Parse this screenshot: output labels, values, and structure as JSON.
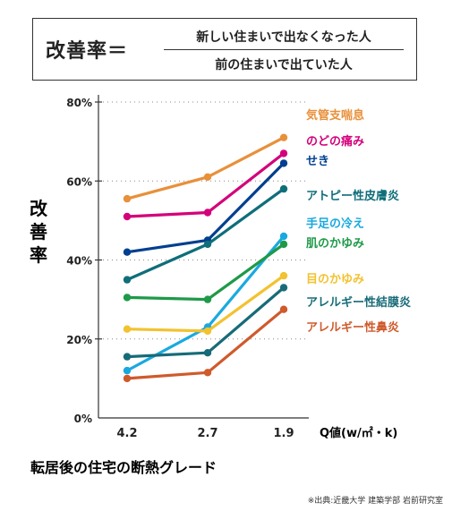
{
  "formula": {
    "lhs": "改善率＝",
    "numerator": "新しい住まいで出なくなった人",
    "denominator": "前の住まいで出ていた人"
  },
  "chart_data": {
    "type": "line",
    "title": "",
    "ylabel": "改善率",
    "xlabel": "転居後の住宅の断熱グレード",
    "x_unit_label": "Q値(w/㎡・k)",
    "categories": [
      "4.2",
      "2.7",
      "1.9"
    ],
    "ylim": [
      0,
      80
    ],
    "yticks": [
      0,
      20,
      40,
      60,
      80
    ],
    "ytick_labels": [
      "0%",
      "20%",
      "40%",
      "60%",
      "80%"
    ],
    "grid": false,
    "legend_placement": "right",
    "series": [
      {
        "name": "気管支喘息",
        "color": "#e8903a",
        "values": [
          55.5,
          61,
          71
        ]
      },
      {
        "name": "のどの痛み",
        "color": "#d4007a",
        "values": [
          51,
          52,
          67
        ]
      },
      {
        "name": "せき",
        "color": "#003f8f",
        "values": [
          42,
          45,
          64.5
        ]
      },
      {
        "name": "アトピー性皮膚炎",
        "color": "#0f6e7a",
        "values": [
          35,
          44,
          58
        ]
      },
      {
        "name": "手足の冷え",
        "color": "#1aa9df",
        "values": [
          12,
          23,
          46
        ]
      },
      {
        "name": "肌のかゆみ",
        "color": "#1e9a48",
        "values": [
          30.5,
          30,
          44
        ]
      },
      {
        "name": "目のかゆみ",
        "color": "#f2c230",
        "values": [
          22.5,
          22,
          36
        ]
      },
      {
        "name": "アレルギー性結膜炎",
        "color": "#176b78",
        "values": [
          15.5,
          16.5,
          33
        ]
      },
      {
        "name": "アレルギー性鼻炎",
        "color": "#cf5a2c",
        "values": [
          10,
          11.5,
          27.5
        ]
      }
    ]
  },
  "source": "※出典:近畿大学 建築学部 岩前研究室"
}
